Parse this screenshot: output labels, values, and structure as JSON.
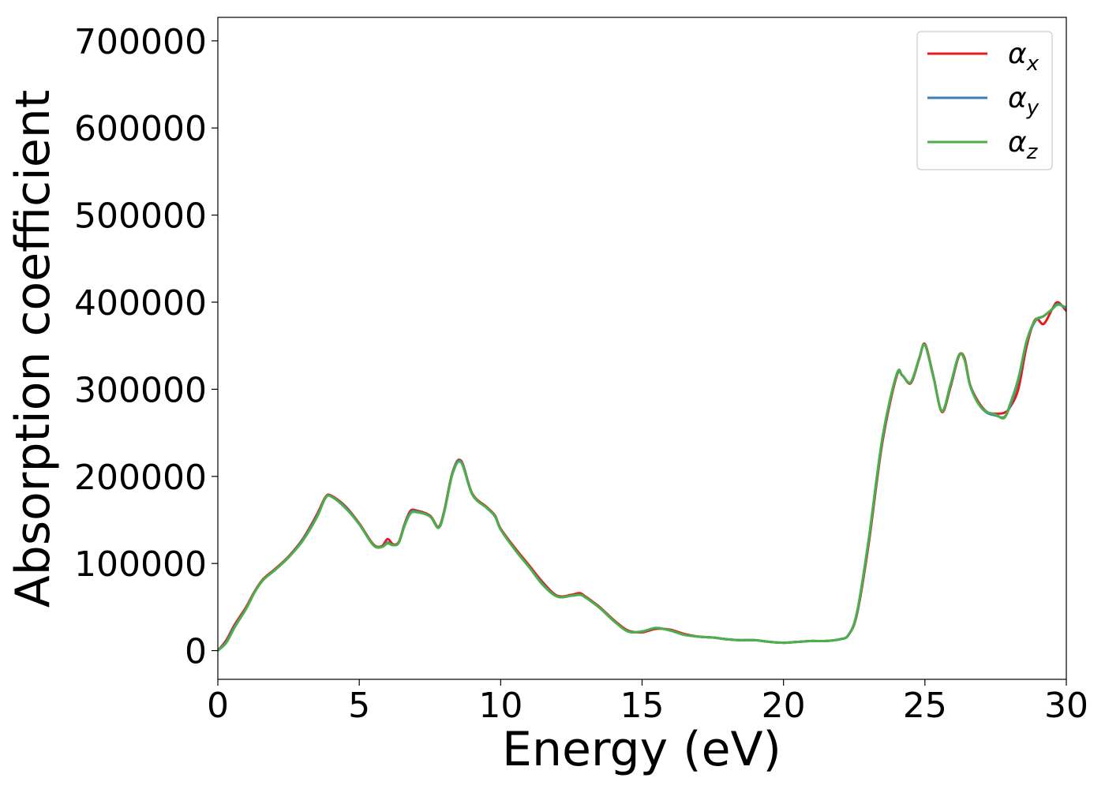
{
  "chart_data": {
    "type": "line",
    "xlabel": "Energy (eV)",
    "ylabel": "Absorption coefficient",
    "xlim": [
      0,
      30
    ],
    "ylim": [
      -33000,
      727000
    ],
    "xticks": [
      0,
      5,
      10,
      15,
      20,
      25,
      30
    ],
    "xtick_labels": [
      "0",
      "5",
      "10",
      "15",
      "20",
      "25",
      "30"
    ],
    "yticks": [
      0,
      100000,
      200000,
      300000,
      400000,
      500000,
      600000,
      700000
    ],
    "ytick_labels": [
      "0",
      "100000",
      "200000",
      "300000",
      "400000",
      "500000",
      "600000",
      "700000"
    ],
    "grid": false,
    "legend_position": "top-right",
    "series": [
      {
        "name": "αx",
        "name_base": "α",
        "name_sub": "x",
        "color": "#e41a1c",
        "x": [
          0,
          0.3,
          0.6,
          1.0,
          1.3,
          1.6,
          2.0,
          2.5,
          3.0,
          3.5,
          3.8,
          4.0,
          4.5,
          5.0,
          5.5,
          5.8,
          6.0,
          6.2,
          6.4,
          6.6,
          6.8,
          7.0,
          7.5,
          7.8,
          8.0,
          8.3,
          8.6,
          9.0,
          9.5,
          9.8,
          10.0,
          10.5,
          11.0,
          11.5,
          12.0,
          12.5,
          12.8,
          13.0,
          13.5,
          14.0,
          14.5,
          15.0,
          15.5,
          16.0,
          16.5,
          17.0,
          17.5,
          18.0,
          18.5,
          19.0,
          19.5,
          20.0,
          20.5,
          21.0,
          21.5,
          22.0,
          22.3,
          22.6,
          23.0,
          23.5,
          24.0,
          24.2,
          24.5,
          24.8,
          25.0,
          25.3,
          25.6,
          25.9,
          26.2,
          26.4,
          26.6,
          26.9,
          27.2,
          27.5,
          27.8,
          28.0,
          28.3,
          28.6,
          28.9,
          29.2,
          29.5,
          29.7,
          30.0
        ],
        "values": [
          0,
          12000,
          30000,
          50000,
          68000,
          82000,
          93000,
          108000,
          128000,
          156000,
          176000,
          178000,
          166000,
          146000,
          122000,
          120000,
          128000,
          122000,
          125000,
          145000,
          160000,
          161000,
          155000,
          142000,
          160000,
          205000,
          218000,
          180000,
          165000,
          155000,
          140000,
          118000,
          98000,
          78000,
          63000,
          64000,
          66000,
          62000,
          50000,
          35000,
          23000,
          21000,
          25000,
          24000,
          19000,
          16000,
          15000,
          13000,
          12000,
          12000,
          10000,
          9000,
          10000,
          11000,
          11000,
          13000,
          18000,
          42000,
          120000,
          240000,
          315000,
          316000,
          307000,
          335000,
          352000,
          315000,
          274000,
          302000,
          338000,
          336000,
          305000,
          285000,
          274000,
          272000,
          273000,
          279000,
          300000,
          350000,
          380000,
          375000,
          392000,
          400000,
          390000
        ]
      },
      {
        "name": "αy",
        "name_base": "α",
        "name_sub": "y",
        "color": "#377eb8",
        "x": [
          0,
          0.3,
          0.6,
          1.0,
          1.3,
          1.6,
          2.0,
          2.5,
          3.0,
          3.5,
          3.8,
          4.0,
          4.5,
          5.0,
          5.5,
          5.8,
          6.0,
          6.2,
          6.4,
          6.6,
          6.8,
          7.0,
          7.5,
          7.8,
          8.0,
          8.3,
          8.6,
          9.0,
          9.5,
          9.8,
          10.0,
          10.5,
          11.0,
          11.5,
          12.0,
          12.5,
          12.8,
          13.0,
          13.5,
          14.0,
          14.5,
          15.0,
          15.5,
          16.0,
          16.5,
          17.0,
          17.5,
          18.0,
          18.5,
          19.0,
          19.5,
          20.0,
          20.5,
          21.0,
          21.5,
          22.0,
          22.3,
          22.6,
          23.0,
          23.5,
          24.0,
          24.2,
          24.5,
          24.8,
          25.0,
          25.3,
          25.6,
          25.9,
          26.2,
          26.4,
          26.6,
          26.9,
          27.2,
          27.5,
          27.8,
          28.0,
          28.3,
          28.6,
          28.9,
          29.2,
          29.5,
          29.7,
          30.0
        ],
        "values": [
          0,
          10000,
          28000,
          48000,
          67000,
          81000,
          92000,
          107000,
          127000,
          154000,
          175000,
          177000,
          165000,
          145000,
          121000,
          119000,
          124000,
          121000,
          124000,
          144000,
          158000,
          160000,
          154000,
          141000,
          159000,
          204000,
          217000,
          179000,
          164000,
          154000,
          139000,
          116000,
          96000,
          76000,
          62000,
          63000,
          64000,
          61000,
          49000,
          34000,
          22000,
          22000,
          26000,
          23000,
          18000,
          16000,
          15000,
          13000,
          12000,
          12000,
          10000,
          9000,
          10000,
          11000,
          11000,
          13000,
          18000,
          44000,
          124000,
          244000,
          317000,
          316000,
          308000,
          336000,
          351000,
          314000,
          275000,
          304000,
          339000,
          334000,
          304000,
          283000,
          273000,
          270000,
          268000,
          280000,
          310000,
          355000,
          378000,
          384000,
          392000,
          398000,
          393000
        ]
      },
      {
        "name": "αz",
        "name_base": "α",
        "name_sub": "z",
        "color": "#4daf4a",
        "x": [
          0,
          0.3,
          0.6,
          1.0,
          1.3,
          1.6,
          2.0,
          2.5,
          3.0,
          3.5,
          3.8,
          4.0,
          4.5,
          5.0,
          5.5,
          5.8,
          6.0,
          6.2,
          6.4,
          6.6,
          6.8,
          7.0,
          7.5,
          7.8,
          8.0,
          8.3,
          8.6,
          9.0,
          9.5,
          9.8,
          10.0,
          10.5,
          11.0,
          11.5,
          12.0,
          12.5,
          12.8,
          13.0,
          13.5,
          14.0,
          14.5,
          15.0,
          15.5,
          16.0,
          16.5,
          17.0,
          17.5,
          18.0,
          18.5,
          19.0,
          19.5,
          20.0,
          20.5,
          21.0,
          21.5,
          22.0,
          22.3,
          22.6,
          23.0,
          23.5,
          24.0,
          24.2,
          24.5,
          24.8,
          25.0,
          25.3,
          25.6,
          25.9,
          26.2,
          26.4,
          26.6,
          26.9,
          27.2,
          27.5,
          27.8,
          28.0,
          28.3,
          28.6,
          28.9,
          29.2,
          29.5,
          29.7,
          30.0
        ],
        "values": [
          0,
          9000,
          27000,
          48000,
          67000,
          81000,
          92000,
          107000,
          126000,
          153000,
          175000,
          177000,
          164000,
          145000,
          121000,
          119000,
          123000,
          121000,
          124000,
          143000,
          157000,
          159000,
          154000,
          141000,
          158000,
          203000,
          216000,
          179000,
          164000,
          154000,
          139000,
          116000,
          96000,
          75000,
          62000,
          63000,
          64000,
          61000,
          49000,
          34000,
          22000,
          22000,
          26000,
          23000,
          18000,
          16000,
          15000,
          13000,
          12000,
          12000,
          10000,
          9000,
          10000,
          11000,
          11000,
          13000,
          18000,
          44000,
          125000,
          245000,
          317000,
          316000,
          308000,
          336000,
          351000,
          314000,
          275000,
          305000,
          339000,
          334000,
          304000,
          283000,
          274000,
          271000,
          267000,
          282000,
          312000,
          356000,
          379000,
          384000,
          392000,
          397000,
          394000
        ]
      }
    ]
  }
}
